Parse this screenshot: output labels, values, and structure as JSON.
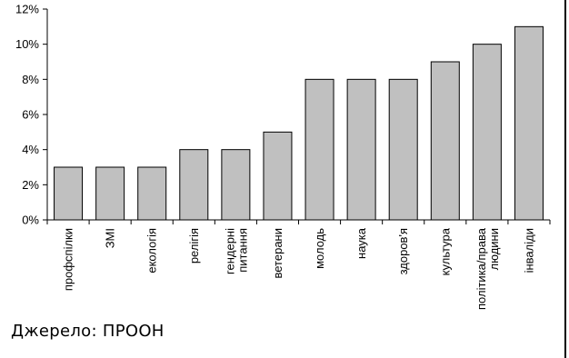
{
  "chart_data": {
    "type": "bar",
    "title_fragment": "",
    "categories": [
      "профспілки",
      "ЗМІ",
      "екологія",
      "релігія",
      "гендерні питання",
      "ветерани",
      "молодь",
      "наука",
      "здоров'я",
      "культура",
      "політика/права людини",
      "інваліди"
    ],
    "values": [
      3,
      3,
      3,
      4,
      4,
      5,
      8,
      8,
      8,
      9,
      10,
      11
    ],
    "ylim": [
      0,
      12
    ],
    "yticks": [
      0,
      2,
      4,
      6,
      8,
      10,
      12
    ],
    "ytick_labels": [
      "0%",
      "2%",
      "4%",
      "6%",
      "8%",
      "10%",
      "12%"
    ],
    "xlabel": "",
    "ylabel": "",
    "grid": false,
    "bar_color": "#c0c0c0",
    "bar_edge_color": "#000000"
  },
  "source_label": "Джерело: ПРООН"
}
